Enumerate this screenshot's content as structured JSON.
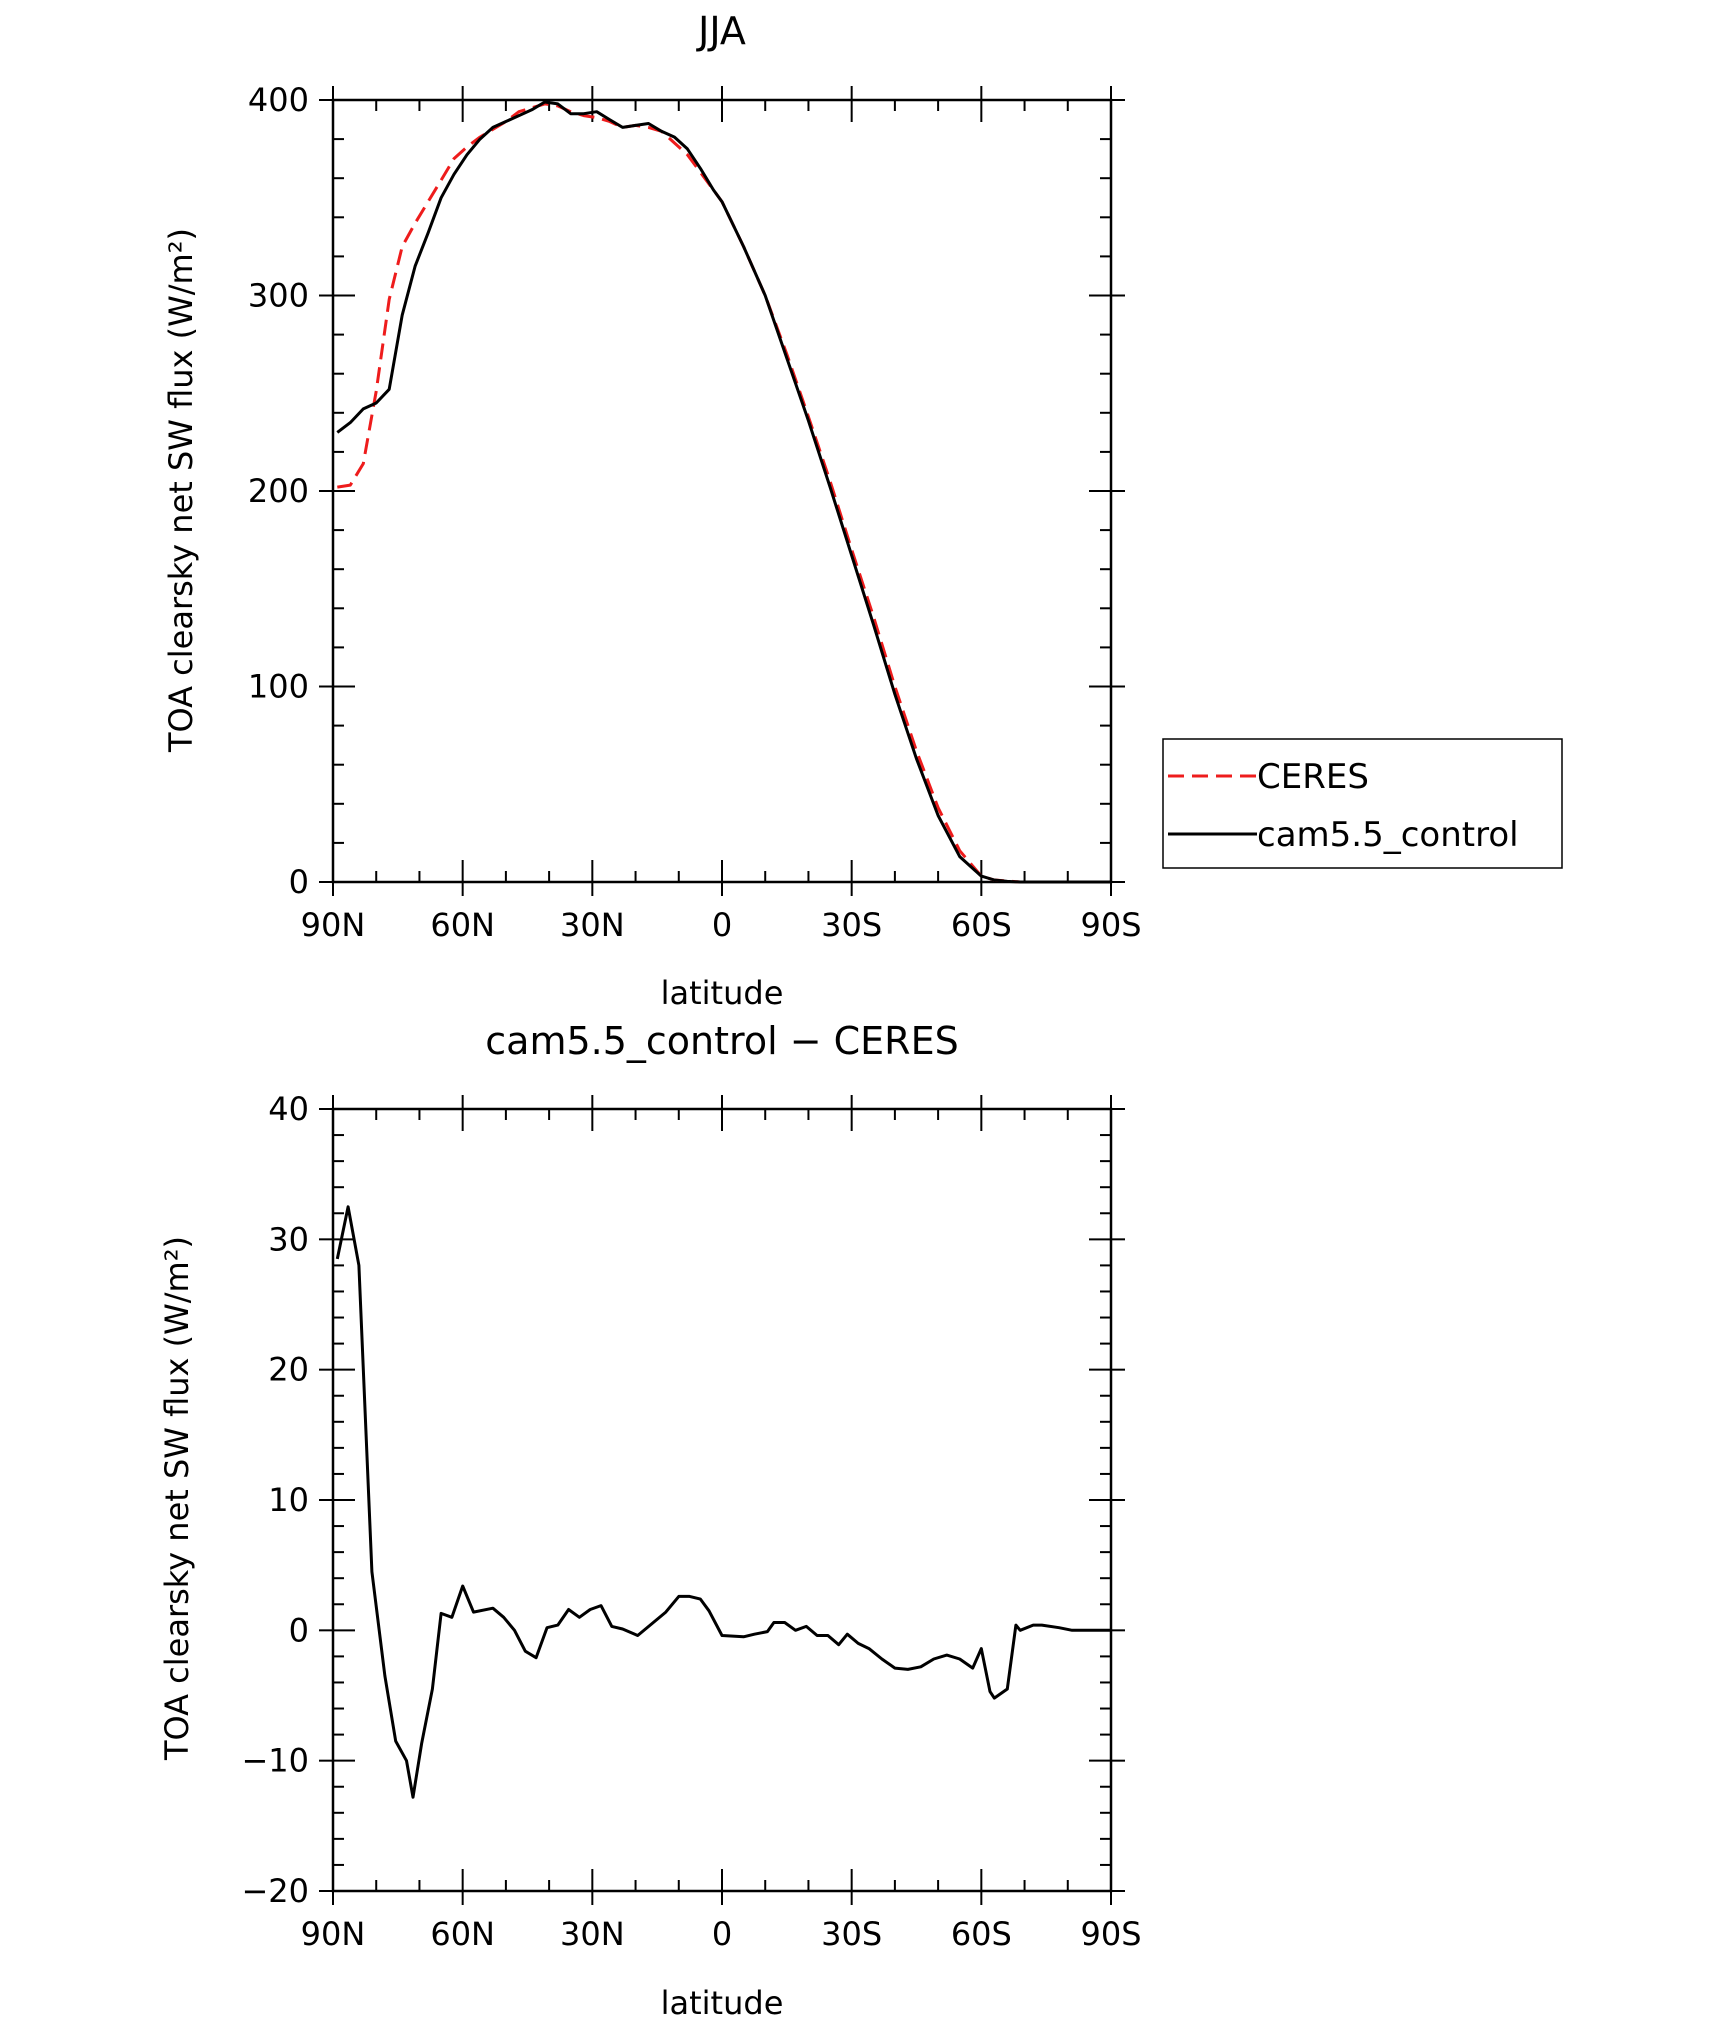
{
  "chart_data": [
    {
      "type": "line",
      "title": "JJA",
      "xlabel": "latitude",
      "ylabel": "TOA clearsky net SW flux (W/m²)",
      "xlim": [
        90,
        -90
      ],
      "ylim": [
        0,
        400
      ],
      "x_ticks": [
        {
          "value": 90,
          "label": "90N"
        },
        {
          "value": 60,
          "label": "60N"
        },
        {
          "value": 30,
          "label": "30N"
        },
        {
          "value": 0,
          "label": "0"
        },
        {
          "value": -30,
          "label": "30S"
        },
        {
          "value": -60,
          "label": "60S"
        },
        {
          "value": -90,
          "label": "90S"
        }
      ],
      "y_ticks": [
        {
          "value": 0,
          "label": "0"
        },
        {
          "value": 100,
          "label": "100"
        },
        {
          "value": 200,
          "label": "200"
        },
        {
          "value": 300,
          "label": "300"
        },
        {
          "value": 400,
          "label": "400"
        }
      ],
      "legend_position": "right",
      "series": [
        {
          "name": "CERES",
          "color": "#ee1c1c",
          "dash": "dashed",
          "x": [
            89,
            86,
            83,
            80,
            77,
            74,
            71,
            68,
            65,
            62,
            59,
            56,
            53,
            50,
            47,
            44,
            41,
            38,
            35,
            32,
            29,
            26,
            23,
            20,
            17,
            14,
            11,
            8,
            5,
            2,
            0,
            -5,
            -10,
            -15,
            -20,
            -25,
            -30,
            -35,
            -40,
            -45,
            -50,
            -55,
            -60,
            -63,
            -66,
            -69,
            -72,
            -75,
            -78,
            -81,
            -84,
            -87,
            -90
          ],
          "y": [
            202,
            203,
            214,
            251,
            298,
            325,
            337,
            348,
            359,
            370,
            376,
            381,
            385,
            389,
            394,
            396,
            398,
            397,
            394,
            392,
            391,
            389,
            386,
            387,
            386,
            384,
            378,
            372,
            363,
            354,
            348,
            325,
            300,
            270,
            238,
            205,
            170,
            136,
            100,
            67,
            38,
            16,
            3,
            1,
            0.5,
            0,
            0,
            0,
            0,
            0,
            0,
            0,
            0
          ]
        },
        {
          "name": "cam5.5_control",
          "color": "#000000",
          "dash": "solid",
          "x": [
            89,
            86,
            83,
            80,
            77,
            74,
            71,
            68,
            65,
            62,
            59,
            56,
            53,
            50,
            47,
            44,
            41,
            38,
            35,
            32,
            29,
            26,
            23,
            20,
            17,
            14,
            11,
            8,
            5,
            2,
            0,
            -5,
            -10,
            -15,
            -20,
            -25,
            -30,
            -35,
            -40,
            -45,
            -50,
            -55,
            -60,
            -63,
            -66,
            -69,
            -72,
            -75,
            -78,
            -81,
            -84,
            -87,
            -90
          ],
          "y": [
            230,
            235,
            242,
            245,
            252,
            290,
            315,
            332,
            350,
            362,
            372,
            380,
            386,
            389,
            392,
            395,
            399,
            398,
            393,
            393,
            394,
            390,
            386,
            387,
            388,
            384,
            381,
            375,
            365,
            354,
            348,
            325,
            300,
            268,
            236,
            202,
            167,
            132,
            96,
            63,
            34,
            13,
            3,
            1,
            0.3,
            0,
            0,
            0,
            0,
            0,
            0,
            0,
            0
          ]
        }
      ]
    },
    {
      "type": "line",
      "title": "cam5.5_control − CERES",
      "xlabel": "latitude",
      "ylabel": "TOA clearsky net SW flux (W/m²)",
      "xlim": [
        90,
        -90
      ],
      "ylim": [
        -20,
        40
      ],
      "x_ticks": [
        {
          "value": 90,
          "label": "90N"
        },
        {
          "value": 60,
          "label": "60N"
        },
        {
          "value": 30,
          "label": "30N"
        },
        {
          "value": 0,
          "label": "0"
        },
        {
          "value": -30,
          "label": "30S"
        },
        {
          "value": -60,
          "label": "60S"
        },
        {
          "value": -90,
          "label": "90S"
        }
      ],
      "y_ticks": [
        {
          "value": -20,
          "label": "−20"
        },
        {
          "value": -10,
          "label": "−10"
        },
        {
          "value": 0,
          "label": "0"
        },
        {
          "value": 10,
          "label": "10"
        },
        {
          "value": 20,
          "label": "20"
        },
        {
          "value": 30,
          "label": "30"
        },
        {
          "value": 40,
          "label": "40"
        }
      ],
      "series": [
        {
          "name": "cam5.5_control − CERES",
          "color": "#000000",
          "dash": "solid",
          "x": [
            89,
            86.5,
            84,
            81,
            78,
            75.5,
            73,
            71.5,
            69.5,
            67,
            65,
            62.5,
            60,
            57.5,
            53,
            50.5,
            48,
            45.5,
            43,
            40.5,
            38,
            35.5,
            33,
            30.5,
            28,
            25.5,
            23,
            19.5,
            13,
            10,
            7.5,
            5,
            3,
            0,
            -5,
            -7.5,
            -10.5,
            -12,
            -14.5,
            -17,
            -19.5,
            -22,
            -24.5,
            -27,
            -29,
            -31.5,
            -34,
            -37,
            -40,
            -43,
            -46,
            -49,
            -52,
            -55,
            -58,
            -60,
            -62,
            -63,
            -66,
            -68,
            -69,
            -72,
            -74,
            -78,
            -81,
            -84,
            -87,
            -90
          ],
          "y": [
            28.5,
            32.5,
            28,
            4.5,
            -3.5,
            -8.5,
            -10,
            -12.8,
            -8.7,
            -4.5,
            1.3,
            1,
            3.4,
            1.4,
            1.7,
            1,
            0,
            -1.6,
            -2.1,
            0.2,
            0.4,
            1.6,
            1,
            1.6,
            1.9,
            0.3,
            0.1,
            -0.4,
            1.4,
            2.6,
            2.6,
            2.4,
            1.5,
            -0.4,
            -0.5,
            -0.3,
            -0.1,
            0.6,
            0.6,
            0,
            0.3,
            -0.4,
            -0.4,
            -1.1,
            -0.3,
            -1,
            -1.4,
            -2.2,
            -2.9,
            -3,
            -2.8,
            -2.2,
            -1.9,
            -2.2,
            -2.9,
            -1.4,
            -4.7,
            -5.2,
            -4.5,
            0.4,
            0,
            0.4,
            0.4,
            0.2,
            0,
            0,
            0,
            0
          ]
        }
      ]
    }
  ]
}
